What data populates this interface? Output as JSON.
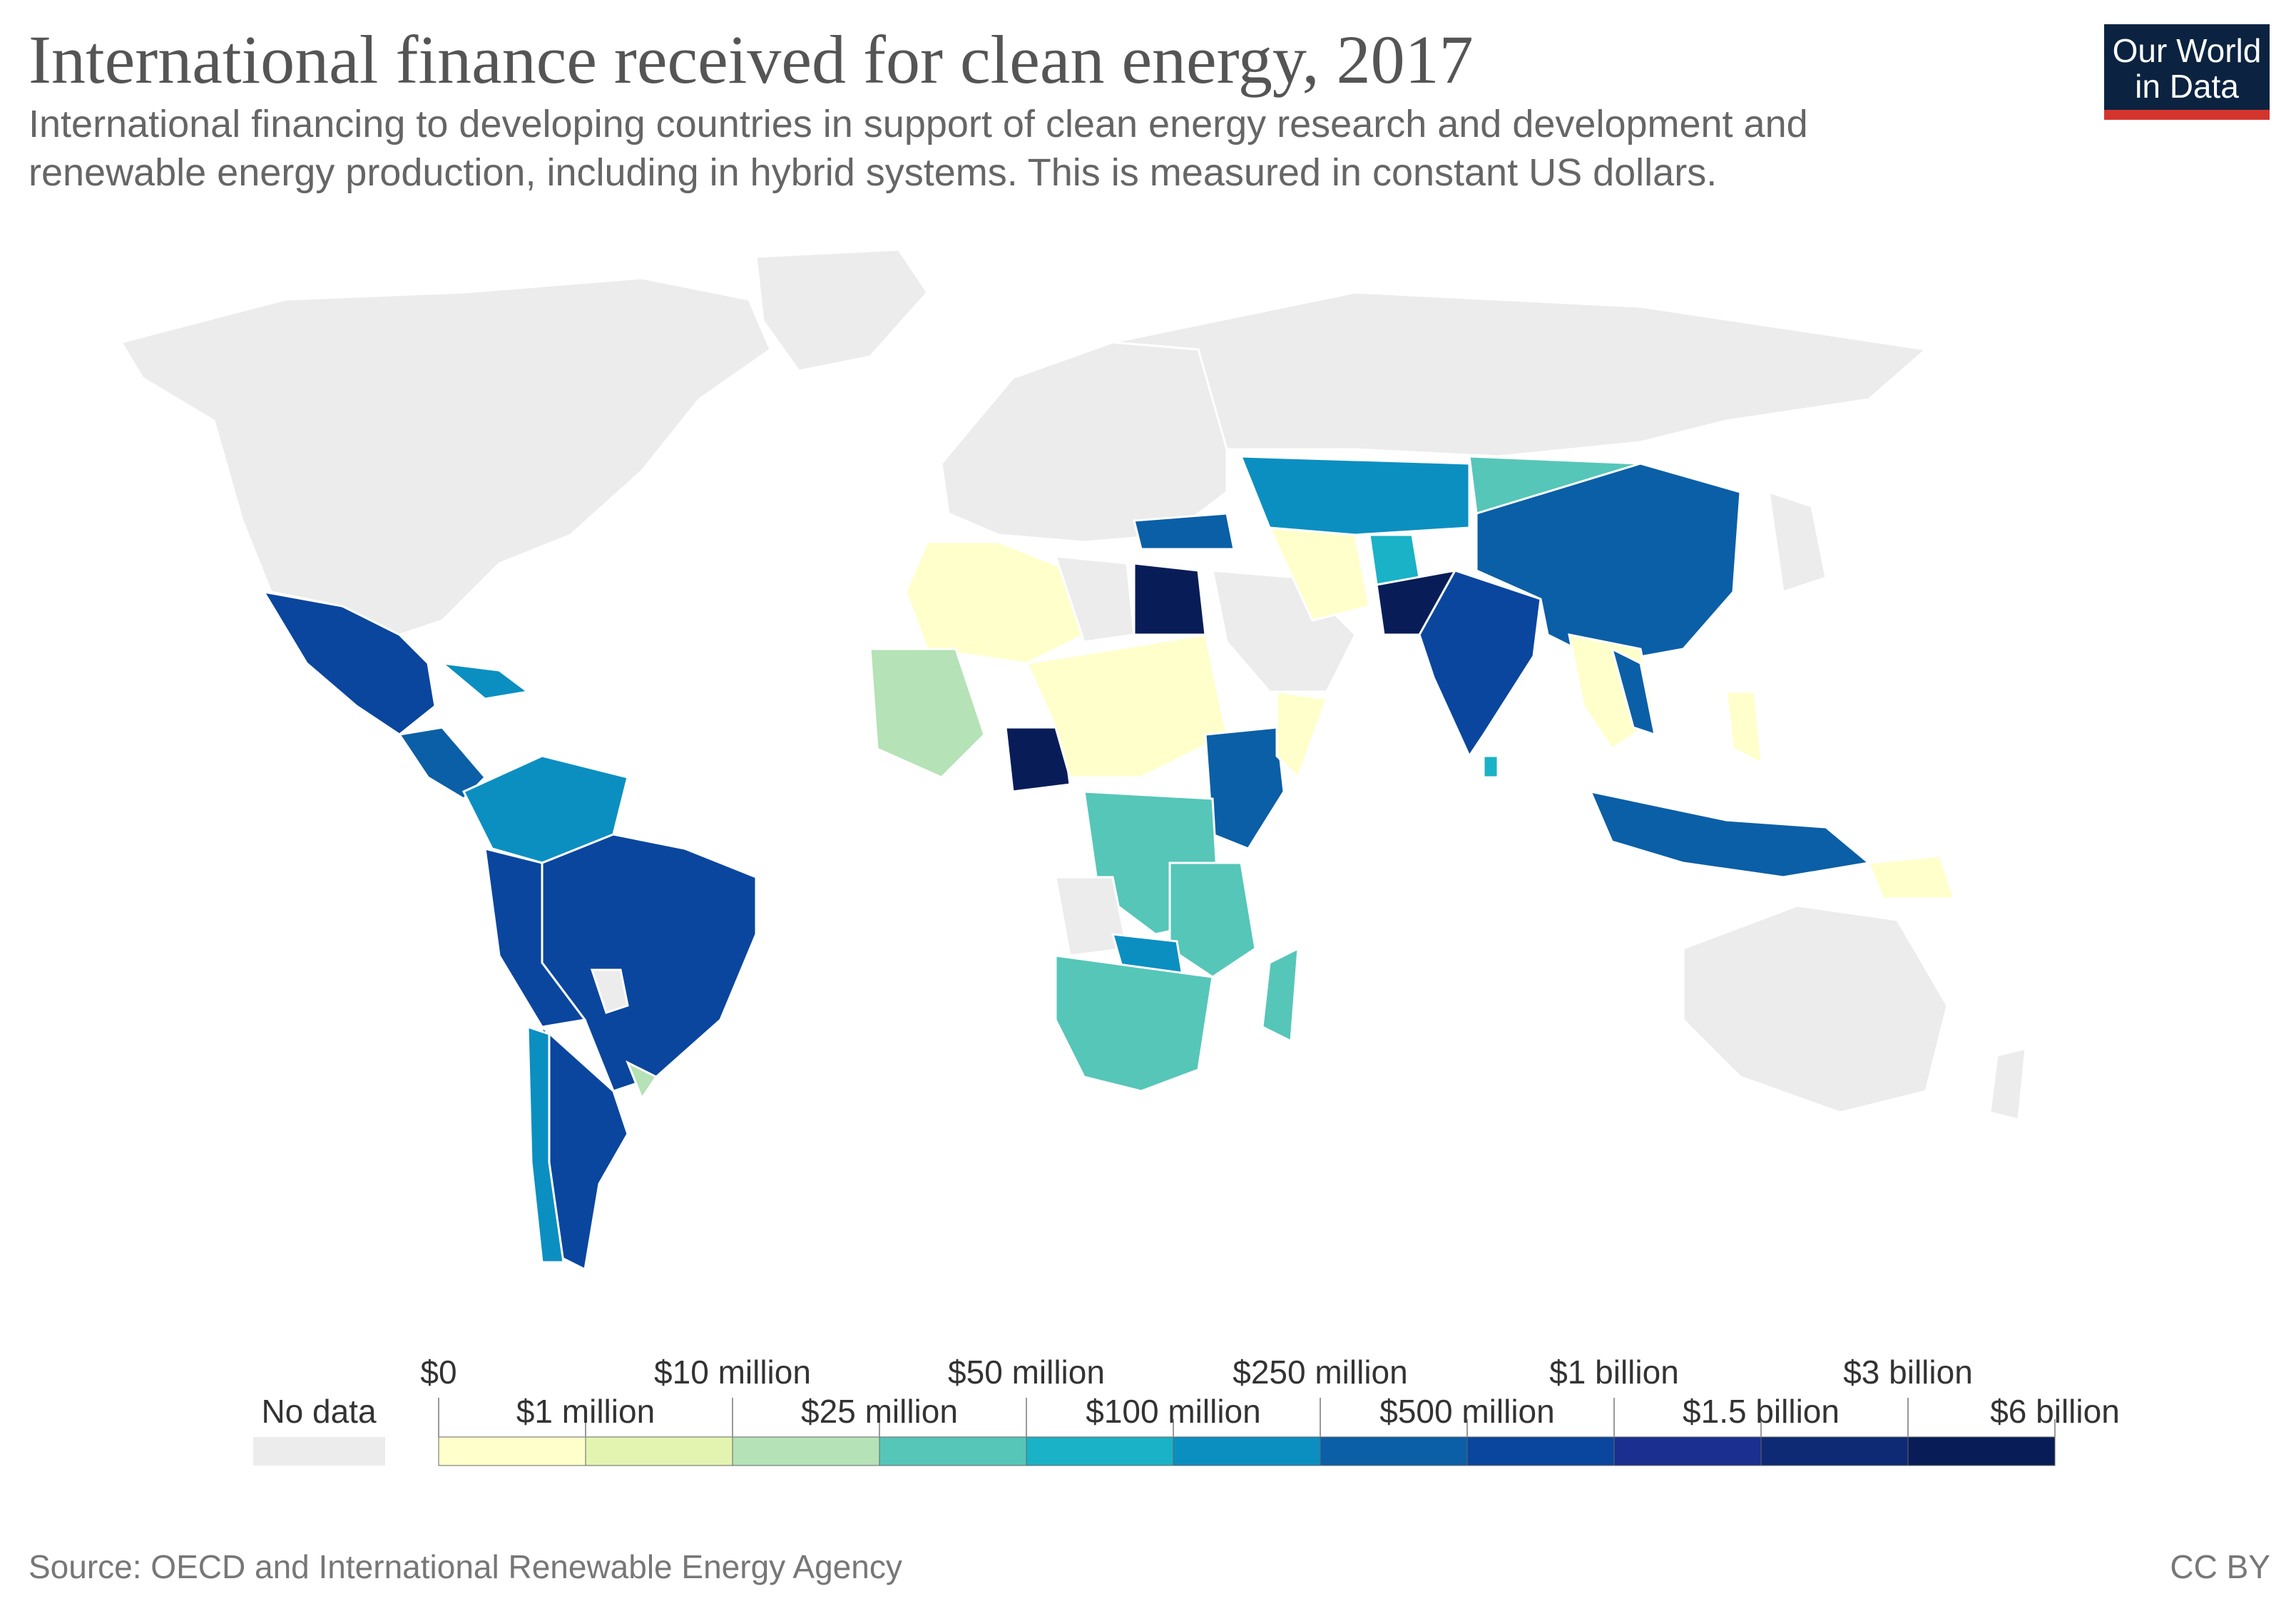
{
  "title": "International finance received for clean energy, 2017",
  "subtitle": "International financing to developing countries in support of clean energy research and development and renewable energy production, including in hybrid systems. This is measured in constant US dollars.",
  "logo": {
    "line1": "Our World",
    "line2": "in Data"
  },
  "source": "Source: OECD and International Renewable Energy Agency",
  "license": "CC BY",
  "legend": {
    "no_data_label": "No data",
    "no_data_color": "#ececec",
    "bins": [
      {
        "color": "#ffffcc"
      },
      {
        "color": "#e3f4b1"
      },
      {
        "color": "#b5e2b6"
      },
      {
        "color": "#56c6b9"
      },
      {
        "color": "#1ab2c6"
      },
      {
        "color": "#0b8fc1"
      },
      {
        "color": "#0b5fa6"
      },
      {
        "color": "#0a469e"
      },
      {
        "color": "#1a2f8f"
      },
      {
        "color": "#0e2a75"
      },
      {
        "color": "#081d58"
      }
    ],
    "top_labels": [
      "$0",
      "$10 million",
      "$50 million",
      "$250 million",
      "$1 billion",
      "$3 billion"
    ],
    "bottom_labels": [
      "$1 million",
      "$25 million",
      "$100 million",
      "$500 million",
      "$1.5 billion",
      "$6 billion"
    ]
  },
  "map": {
    "ocean": "#ffffff",
    "no_data_color": "#ececec",
    "border_color": "#ffffff"
  }
}
